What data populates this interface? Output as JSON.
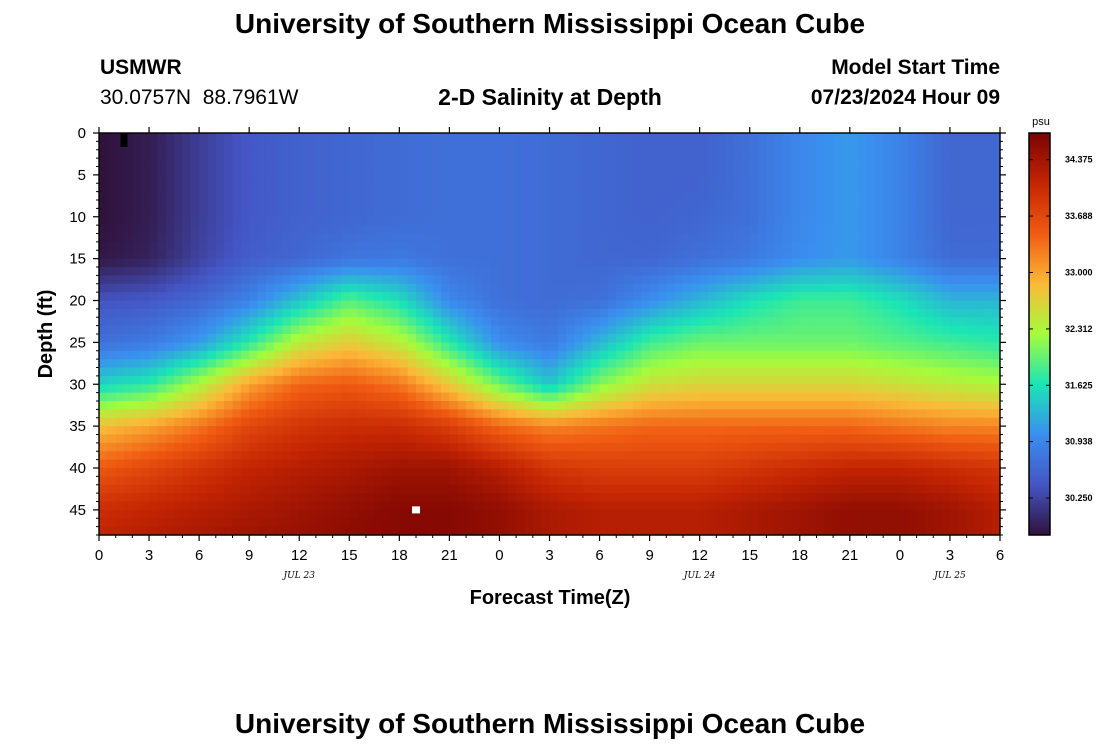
{
  "page": {
    "title": "University of Southern Mississippi Ocean Cube",
    "bottom_title": "University of Southern Mississippi Ocean Cube"
  },
  "station": {
    "id": "USMWR",
    "coords": "30.0757N  88.7961W"
  },
  "model_start": {
    "label": "Model Start Time",
    "value": "07/23/2024 Hour 09"
  },
  "chart_data": {
    "type": "heatmap",
    "title": "2-D Salinity at Depth",
    "xlabel": "Forecast Time(Z)",
    "ylabel": "Depth (ft)",
    "x_range_hours": [
      0,
      54
    ],
    "x_ticks": [
      {
        "hour": 0,
        "label": "0"
      },
      {
        "hour": 3,
        "label": "3"
      },
      {
        "hour": 6,
        "label": "6"
      },
      {
        "hour": 9,
        "label": "9"
      },
      {
        "hour": 12,
        "label": "12"
      },
      {
        "hour": 15,
        "label": "15"
      },
      {
        "hour": 18,
        "label": "18"
      },
      {
        "hour": 21,
        "label": "21"
      },
      {
        "hour": 24,
        "label": "0"
      },
      {
        "hour": 27,
        "label": "3"
      },
      {
        "hour": 30,
        "label": "6"
      },
      {
        "hour": 33,
        "label": "9"
      },
      {
        "hour": 36,
        "label": "12"
      },
      {
        "hour": 39,
        "label": "15"
      },
      {
        "hour": 42,
        "label": "18"
      },
      {
        "hour": 45,
        "label": "21"
      },
      {
        "hour": 48,
        "label": "0"
      },
      {
        "hour": 51,
        "label": "3"
      },
      {
        "hour": 54,
        "label": "6"
      }
    ],
    "date_labels": [
      {
        "hour": 12,
        "label": "JUL 23"
      },
      {
        "hour": 36,
        "label": "JUL 24"
      },
      {
        "hour": 51,
        "label": "JUL 25"
      }
    ],
    "y_range_ft": [
      0,
      48
    ],
    "y_ticks": [
      0,
      5,
      10,
      15,
      20,
      25,
      30,
      35,
      40,
      45
    ],
    "colorbar": {
      "unit": "psu",
      "min": 29.8,
      "max": 34.7,
      "ticks": [
        34.375,
        33.688,
        33.0,
        32.312,
        31.625,
        30.938,
        30.25
      ],
      "tick_labels": [
        "34.375",
        "33.688",
        "33.000",
        "32.312",
        "31.625",
        "30.938",
        "30.250"
      ],
      "colors": [
        "#30123b",
        "#4455c4",
        "#3a8ff0",
        "#1be5b5",
        "#a4fc3c",
        "#fbb938",
        "#f05b12",
        "#c42503",
        "#7a0403"
      ]
    },
    "grid_hours": [
      0,
      3,
      6,
      9,
      12,
      15,
      18,
      21,
      24,
      27,
      30,
      33,
      36,
      39,
      42,
      45,
      48,
      51,
      54
    ],
    "grid_depths": [
      0,
      5,
      10,
      15,
      20,
      25,
      30,
      35,
      40,
      45,
      48
    ],
    "values": [
      [
        29.8,
        29.9,
        30.2,
        30.45,
        30.55,
        30.6,
        30.65,
        30.7,
        30.7,
        30.65,
        30.6,
        30.55,
        30.55,
        30.7,
        30.95,
        31.1,
        30.9,
        30.6,
        30.6
      ],
      [
        29.8,
        29.9,
        30.2,
        30.45,
        30.55,
        30.6,
        30.65,
        30.7,
        30.7,
        30.65,
        30.6,
        30.55,
        30.55,
        30.7,
        30.95,
        31.1,
        30.9,
        30.6,
        30.6
      ],
      [
        29.8,
        29.9,
        30.2,
        30.45,
        30.55,
        30.6,
        30.65,
        30.7,
        30.7,
        30.65,
        30.6,
        30.55,
        30.6,
        30.7,
        30.95,
        31.1,
        30.9,
        30.6,
        30.6
      ],
      [
        29.85,
        29.95,
        30.25,
        30.5,
        30.6,
        30.75,
        30.8,
        30.7,
        30.7,
        30.65,
        30.6,
        30.6,
        30.7,
        30.8,
        31.0,
        31.1,
        30.9,
        30.65,
        30.65
      ],
      [
        30.4,
        30.45,
        30.6,
        30.9,
        31.4,
        31.9,
        31.6,
        30.95,
        30.7,
        30.65,
        30.7,
        31.0,
        31.3,
        31.6,
        31.8,
        31.8,
        31.6,
        31.3,
        31.3
      ],
      [
        30.7,
        30.8,
        31.1,
        31.7,
        32.4,
        32.7,
        32.4,
        31.7,
        31.0,
        30.8,
        31.3,
        31.8,
        32.0,
        32.0,
        32.0,
        32.0,
        31.9,
        31.8,
        31.7
      ],
      [
        31.5,
        31.7,
        32.3,
        33.0,
        33.4,
        33.5,
        33.3,
        32.7,
        32.0,
        31.4,
        32.1,
        32.5,
        32.6,
        32.6,
        32.6,
        32.6,
        32.5,
        32.4,
        32.3
      ],
      [
        32.8,
        33.0,
        33.3,
        33.7,
        33.9,
        34.0,
        34.0,
        33.8,
        33.4,
        33.2,
        33.3,
        33.4,
        33.4,
        33.4,
        33.4,
        33.4,
        33.3,
        33.2,
        33.2
      ],
      [
        33.5,
        33.7,
        33.9,
        34.1,
        34.2,
        34.3,
        34.4,
        34.4,
        34.2,
        33.9,
        33.8,
        33.8,
        33.8,
        33.9,
        34.0,
        34.1,
        34.1,
        34.0,
        33.9
      ],
      [
        34.0,
        34.1,
        34.2,
        34.3,
        34.4,
        34.5,
        34.6,
        34.6,
        34.5,
        34.3,
        34.2,
        34.2,
        34.2,
        34.3,
        34.4,
        34.5,
        34.5,
        34.4,
        34.2
      ],
      [
        34.1,
        34.2,
        34.3,
        34.4,
        34.45,
        34.55,
        34.6,
        34.6,
        34.5,
        34.3,
        34.2,
        34.2,
        34.2,
        34.3,
        34.4,
        34.5,
        34.5,
        34.4,
        34.2
      ]
    ],
    "markers": [
      {
        "name": "surface-marker",
        "hour": 1.5,
        "depth": 0.5,
        "color": "#000000"
      },
      {
        "name": "depth-marker",
        "hour": 19,
        "depth": 45,
        "color": "#ffffff"
      }
    ]
  }
}
